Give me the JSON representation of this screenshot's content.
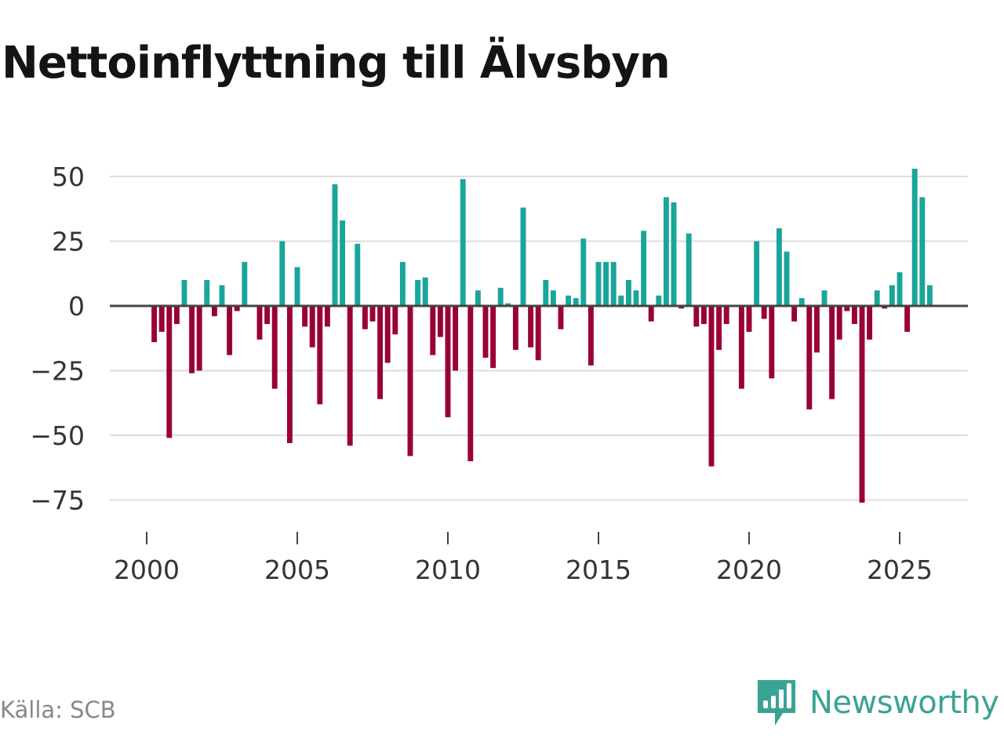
{
  "title": "Nettoinflyttning till Älvsbyn",
  "source": "Källa: SCB",
  "brand": {
    "name": "Newsworthy",
    "icon": "newsworthy-logo-icon"
  },
  "colors": {
    "positive": "#1aa59a",
    "negative": "#990038",
    "brand": "#3aa394",
    "grid": "#dddddd",
    "zero_line": "#444444",
    "text": "#333333"
  },
  "chart_data": {
    "type": "bar",
    "title": "Nettoinflyttning till Älvsbyn",
    "xlabel": "",
    "ylabel": "",
    "ylim": [
      -80,
      55
    ],
    "y_ticks": [
      50,
      25,
      0,
      -25,
      -50,
      -75
    ],
    "y_tick_labels": [
      "50",
      "25",
      "0",
      "−25",
      "−50",
      "−75"
    ],
    "x_ticks": [
      2000,
      2005,
      2010,
      2015,
      2020,
      2025
    ],
    "x_tick_labels": [
      "2000",
      "2005",
      "2010",
      "2015",
      "2020",
      "2025"
    ],
    "grid": true,
    "bar_width_years": 0.2,
    "x": [
      2000.25,
      2000.5,
      2000.75,
      2001.0,
      2001.25,
      2001.5,
      2001.75,
      2002.0,
      2002.25,
      2002.5,
      2002.75,
      2003.0,
      2003.25,
      2003.5,
      2003.75,
      2004.0,
      2004.25,
      2004.5,
      2004.75,
      2005.0,
      2005.25,
      2005.5,
      2005.75,
      2006.0,
      2006.25,
      2006.5,
      2006.75,
      2007.0,
      2007.25,
      2007.5,
      2007.75,
      2008.0,
      2008.25,
      2008.5,
      2008.75,
      2009.0,
      2009.25,
      2009.5,
      2009.75,
      2010.0,
      2010.25,
      2010.5,
      2010.75,
      2011.0,
      2011.25,
      2011.5,
      2011.75,
      2012.0,
      2012.25,
      2012.5,
      2012.75,
      2013.0,
      2013.25,
      2013.5,
      2013.75,
      2014.0,
      2014.25,
      2014.5,
      2014.75,
      2015.0,
      2015.25,
      2015.5,
      2015.75,
      2016.0,
      2016.25,
      2016.5,
      2016.75,
      2017.0,
      2017.25,
      2017.5,
      2017.75,
      2018.0,
      2018.25,
      2018.5,
      2018.75,
      2019.0,
      2019.25,
      2019.5,
      2019.75,
      2020.0,
      2020.25,
      2020.5,
      2020.75,
      2021.0,
      2021.25,
      2021.5,
      2021.75,
      2022.0,
      2022.25,
      2022.5,
      2022.75,
      2023.0,
      2023.25,
      2023.5,
      2023.75,
      2024.0,
      2024.25,
      2024.5,
      2024.75,
      2025.0,
      2025.25,
      2025.5,
      2025.75,
      2026.0
    ],
    "values": [
      -14,
      -10,
      -51,
      -7,
      10,
      -26,
      -25,
      10,
      -4,
      8,
      -19,
      -2,
      17,
      0,
      -13,
      -7,
      -32,
      25,
      -53,
      15,
      -8,
      -16,
      -38,
      -8,
      47,
      33,
      -54,
      24,
      -9,
      -6,
      -36,
      -22,
      -11,
      17,
      -58,
      10,
      11,
      -19,
      -12,
      -43,
      -25,
      49,
      -60,
      6,
      -20,
      -24,
      7,
      1,
      -17,
      38,
      -16,
      -21,
      10,
      6,
      -9,
      4,
      3,
      26,
      -23,
      17,
      17,
      17,
      4,
      10,
      6,
      29,
      -6,
      4,
      42,
      40,
      -1,
      28,
      -8,
      -7,
      -62,
      -17,
      -7,
      0,
      -32,
      -10,
      25,
      -5,
      -28,
      30,
      21,
      -6,
      3,
      -40,
      -18,
      6,
      -36,
      -13,
      -2,
      -7,
      -76,
      -13,
      6,
      -1,
      8,
      13,
      -10,
      53,
      42,
      8
    ]
  }
}
